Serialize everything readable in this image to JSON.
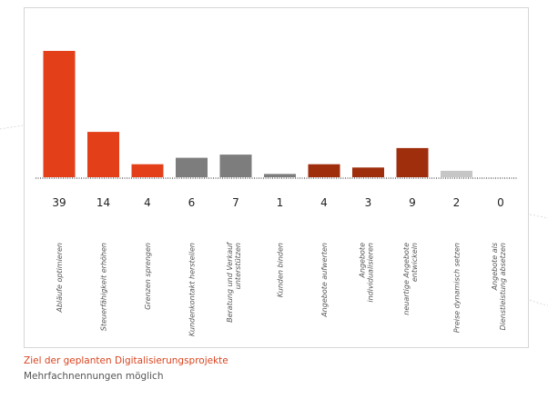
{
  "caption": {
    "title": "Ziel der geplanten Digitalisierungsprojekte",
    "subtitle": "Mehrfachnennungen möglich"
  },
  "chart_data": {
    "type": "bar",
    "categories": [
      "Abläufe optimieren",
      "Steuerfähigkeit erhöhen",
      "Grenzen sprengen",
      "Kundenkontakt herstellen",
      "Beratung und Verkauf unterstützen",
      "Kunden binden",
      "Angebote aufwerten",
      "Angebote individualisieren",
      "neuartige Angebote entwickeln",
      "Preise dynamisch setzen",
      "Angebote als Dienstleistung absetzen"
    ],
    "values": [
      39,
      14,
      4,
      6,
      7,
      1,
      4,
      3,
      9,
      2,
      0
    ],
    "bar_colors": [
      "#e3401a",
      "#e3401a",
      "#e3401a",
      "#7d7d7d",
      "#7d7d7d",
      "#7d7d7d",
      "#9e2e0c",
      "#9e2e0c",
      "#9e2e0c",
      "#c6c6c6",
      "#c6c6c6"
    ],
    "ylim": [
      0,
      39
    ],
    "baseline": "dotted",
    "grid": false,
    "legend": "none"
  }
}
